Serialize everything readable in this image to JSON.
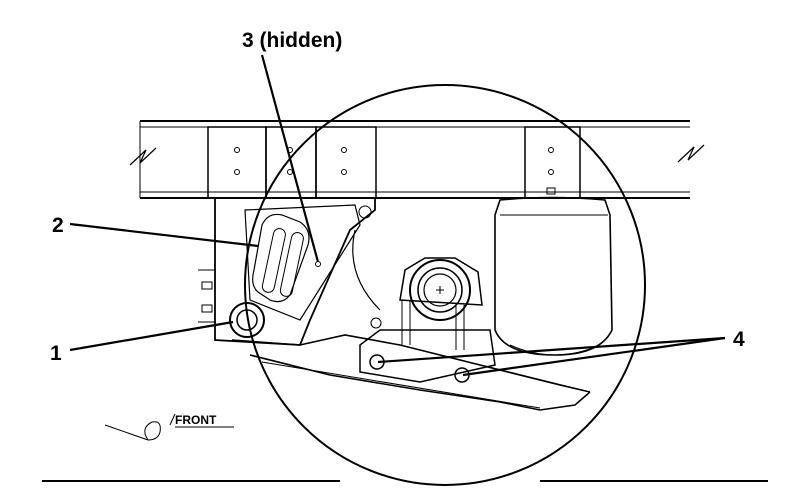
{
  "callouts": [
    {
      "id": "1",
      "text": "1"
    },
    {
      "id": "2",
      "text": "2"
    },
    {
      "id": "3",
      "text": "3 (hidden)"
    },
    {
      "id": "4",
      "text": "4"
    }
  ],
  "direction": {
    "text": "FRONT"
  },
  "colors": {
    "ink": "#000000",
    "paper": "#ffffff"
  }
}
